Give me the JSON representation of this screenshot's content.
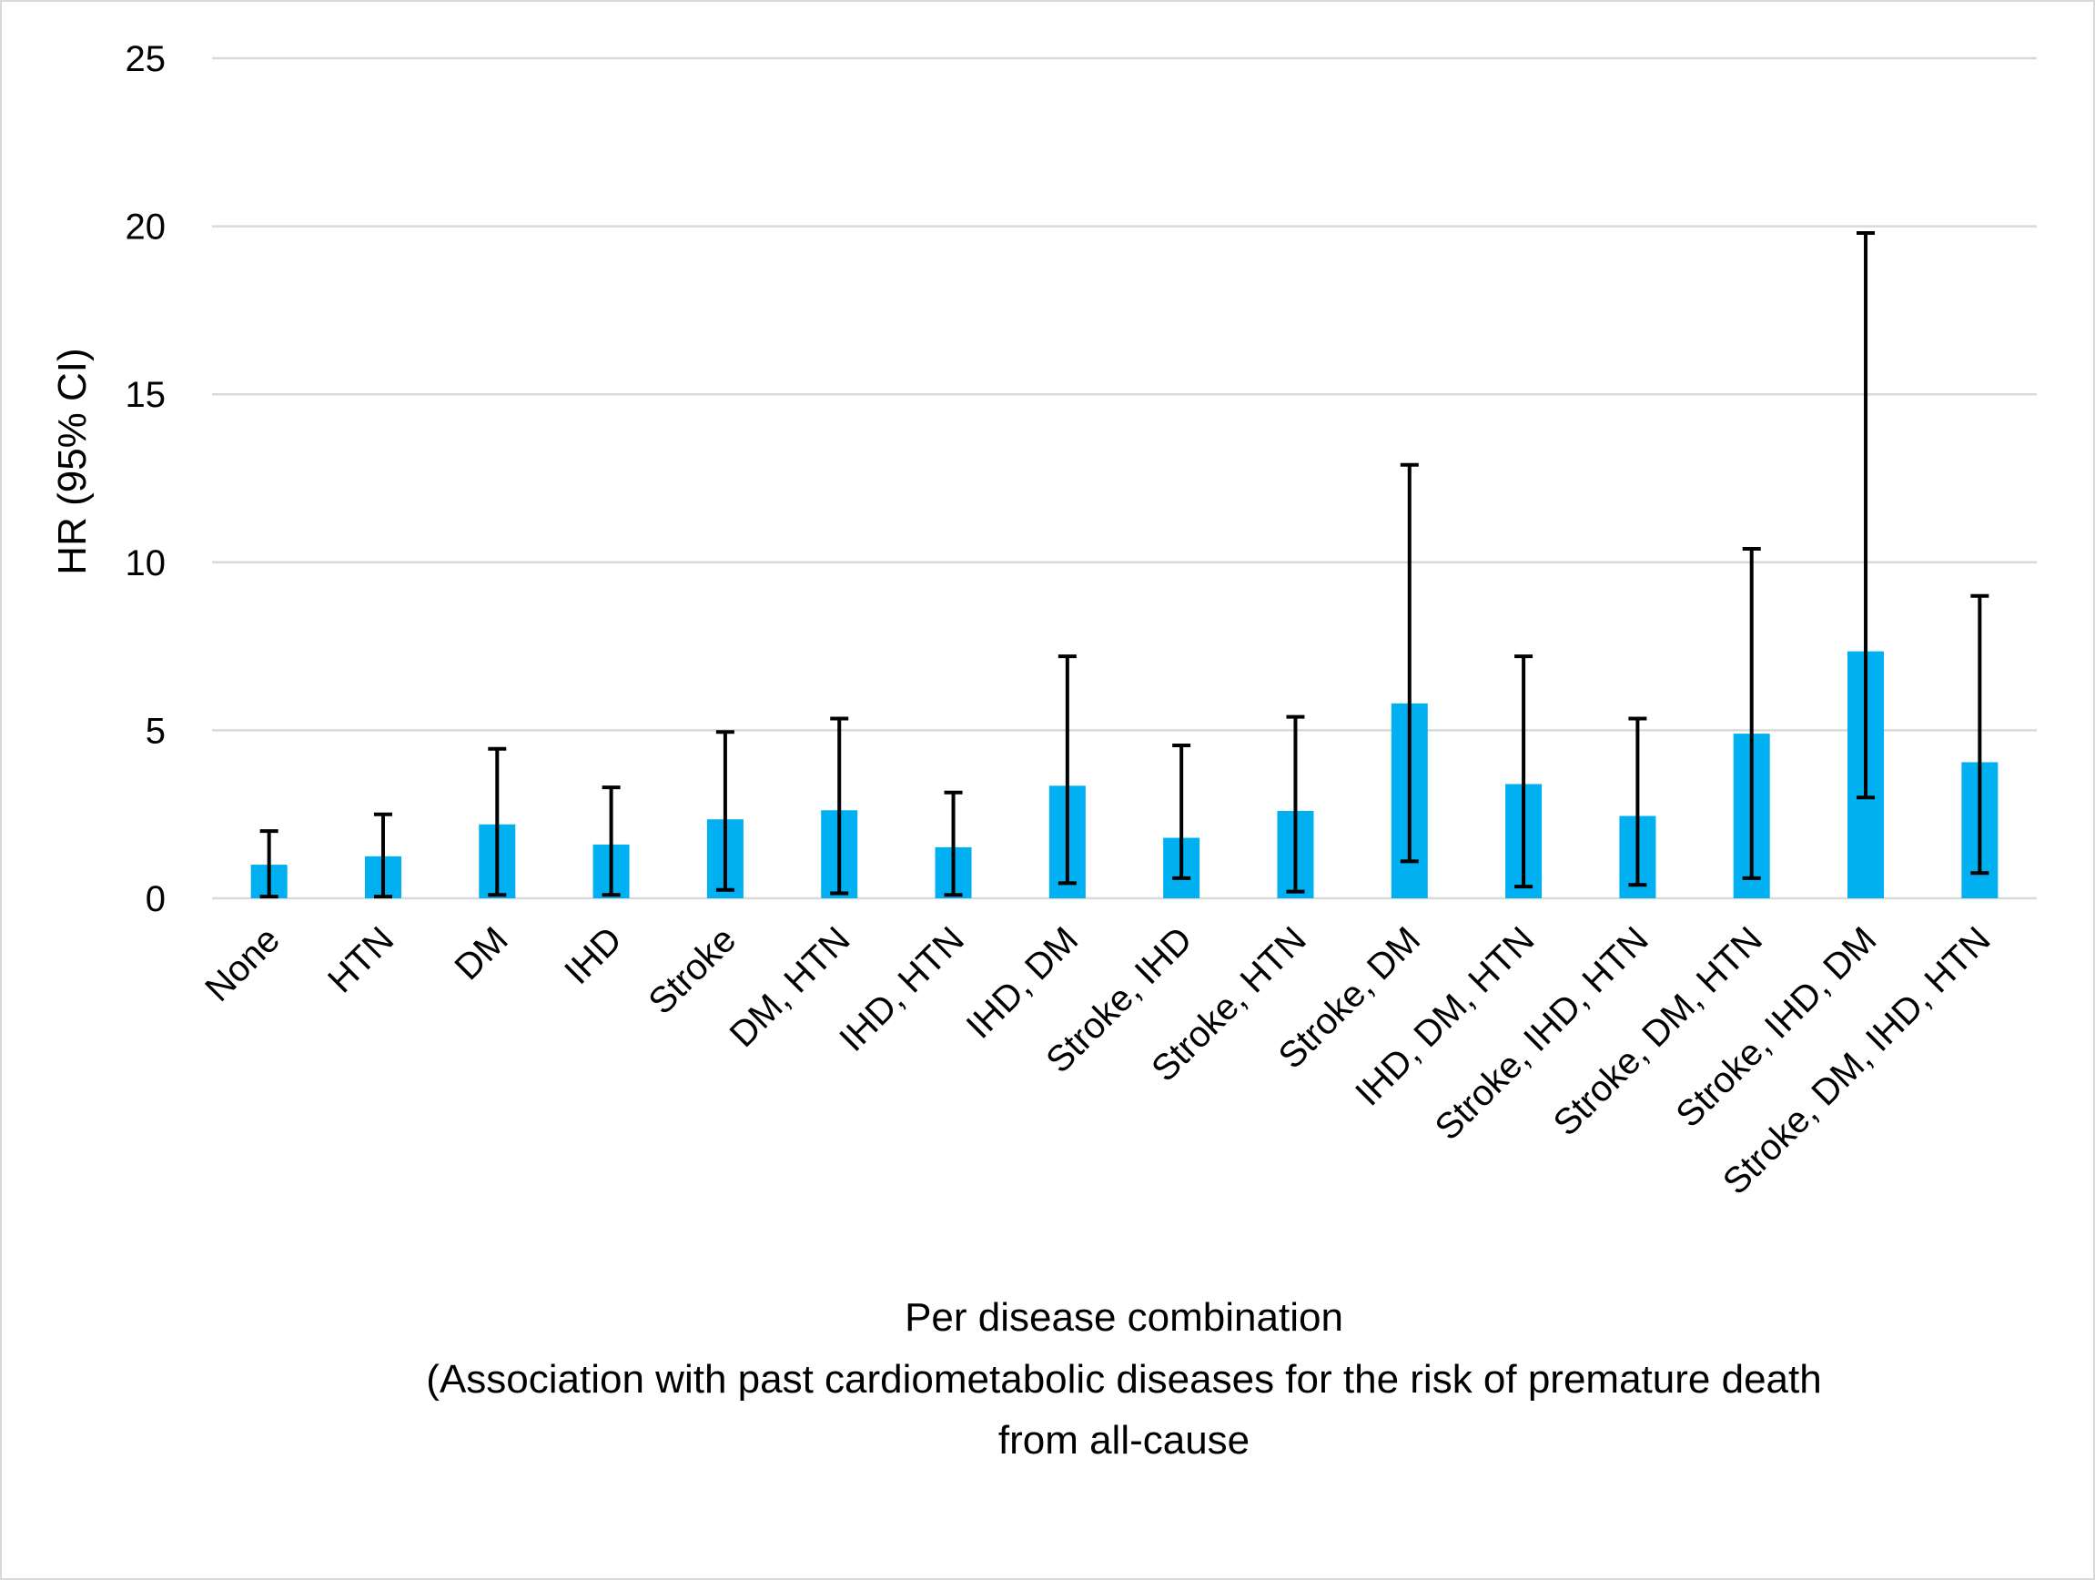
{
  "chart_data": {
    "type": "bar",
    "title": "",
    "xlabel": "Per disease combination",
    "xlabel_lines": [
      "Per disease combination",
      "(Association with past cardiometabolic diseases for the risk of premature death",
      "from all-cause"
    ],
    "ylabel": "HR (95% CI)",
    "ylim": [
      0,
      25
    ],
    "yticks": [
      0,
      5,
      10,
      15,
      20,
      25
    ],
    "grid": true,
    "legend": "none",
    "bar_color": "#00B0F0",
    "errorbar_color": "#000000",
    "categories": [
      "None",
      "HTN",
      "DM",
      "IHD",
      "Stroke",
      "DM, HTN",
      "IHD, HTN",
      "IHD, DM",
      "Stroke, IHD",
      "Stroke, HTN",
      "Stroke, DM",
      "IHD, DM, HTN",
      "Stroke, IHD, HTN",
      "Stroke, DM, HTN",
      "Stroke, IHD, DM",
      "Stroke, DM, IHD, HTN"
    ],
    "values": [
      1.0,
      1.25,
      2.2,
      1.6,
      2.35,
      2.62,
      1.52,
      3.35,
      1.8,
      2.6,
      5.8,
      3.4,
      2.45,
      4.9,
      7.35,
      4.05
    ],
    "ci_lower": [
      0.05,
      0.05,
      0.1,
      0.1,
      0.25,
      0.15,
      0.1,
      0.45,
      0.6,
      0.2,
      1.1,
      0.35,
      0.4,
      0.6,
      3.0,
      0.75
    ],
    "ci_upper": [
      2.0,
      2.5,
      4.45,
      3.3,
      4.95,
      5.35,
      3.15,
      7.2,
      4.55,
      5.4,
      12.9,
      7.2,
      5.35,
      10.4,
      19.8,
      9.0
    ]
  }
}
